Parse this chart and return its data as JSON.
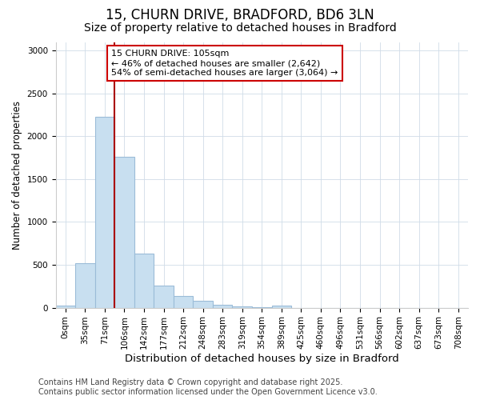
{
  "title": "15, CHURN DRIVE, BRADFORD, BD6 3LN",
  "subtitle": "Size of property relative to detached houses in Bradford",
  "xlabel": "Distribution of detached houses by size in Bradford",
  "ylabel": "Number of detached properties",
  "categories": [
    "0sqm",
    "35sqm",
    "71sqm",
    "106sqm",
    "142sqm",
    "177sqm",
    "212sqm",
    "248sqm",
    "283sqm",
    "319sqm",
    "354sqm",
    "389sqm",
    "425sqm",
    "460sqm",
    "496sqm",
    "531sqm",
    "566sqm",
    "602sqm",
    "637sqm",
    "673sqm",
    "708sqm"
  ],
  "values": [
    20,
    520,
    2230,
    1760,
    635,
    260,
    140,
    80,
    30,
    15,
    5,
    25,
    0,
    0,
    0,
    0,
    0,
    0,
    0,
    0,
    0
  ],
  "bar_color": "#c8dff0",
  "bar_edge_color": "#9bbcd8",
  "vline_color": "#aa0000",
  "annotation_title": "15 CHURN DRIVE: 105sqm",
  "annotation_line1": "← 46% of detached houses are smaller (2,642)",
  "annotation_line2": "54% of semi-detached houses are larger (3,064) →",
  "annotation_box_edgecolor": "#cc0000",
  "ylim": [
    0,
    3100
  ],
  "yticks": [
    0,
    500,
    1000,
    1500,
    2000,
    2500,
    3000
  ],
  "footer_line1": "Contains HM Land Registry data © Crown copyright and database right 2025.",
  "footer_line2": "Contains public sector information licensed under the Open Government Licence v3.0.",
  "bg_color": "#ffffff",
  "plot_bg_color": "#ffffff",
  "grid_color": "#d0dce8",
  "title_fontsize": 12,
  "subtitle_fontsize": 10,
  "xlabel_fontsize": 9.5,
  "ylabel_fontsize": 8.5,
  "tick_fontsize": 7.5,
  "annotation_fontsize": 8,
  "footer_fontsize": 7
}
